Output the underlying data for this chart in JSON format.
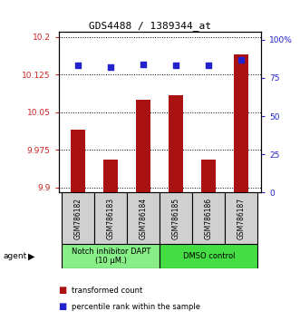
{
  "title": "GDS4488 / 1389344_at",
  "samples": [
    "GSM786182",
    "GSM786183",
    "GSM786184",
    "GSM786185",
    "GSM786186",
    "GSM786187"
  ],
  "bar_values": [
    10.015,
    9.955,
    10.075,
    10.085,
    9.955,
    10.165
  ],
  "percentile_values": [
    83,
    82,
    84,
    83,
    83,
    87
  ],
  "ylim_left": [
    9.89,
    10.21
  ],
  "ylim_right": [
    0,
    105
  ],
  "yticks_left": [
    9.9,
    9.975,
    10.05,
    10.125,
    10.2
  ],
  "yticks_right": [
    0,
    25,
    50,
    75,
    100
  ],
  "ytick_labels_left": [
    "9.9",
    "9.975",
    "10.05",
    "10.125",
    "10.2"
  ],
  "ytick_labels_right": [
    "0",
    "25",
    "50",
    "75",
    "100%"
  ],
  "bar_color": "#aa1111",
  "dot_color": "#2222cc",
  "bar_bottom": 9.89,
  "agent_groups": [
    {
      "label": "Notch inhibitor DAPT\n(10 μM.)",
      "start": 0,
      "end": 3,
      "color": "#88ee88"
    },
    {
      "label": "DMSO control",
      "start": 3,
      "end": 6,
      "color": "#44dd44"
    }
  ],
  "legend_items": [
    {
      "color": "#aa1111",
      "label": " transformed count"
    },
    {
      "color": "#2222cc",
      "label": " percentile rank within the sample"
    }
  ],
  "agent_label": "agent",
  "left_axis_color": "#cc2222",
  "right_axis_color": "#2222cc",
  "title_fontsize": 8,
  "tick_fontsize": 6.5,
  "legend_fontsize": 6,
  "sample_fontsize": 5.5,
  "agent_fontsize": 6
}
